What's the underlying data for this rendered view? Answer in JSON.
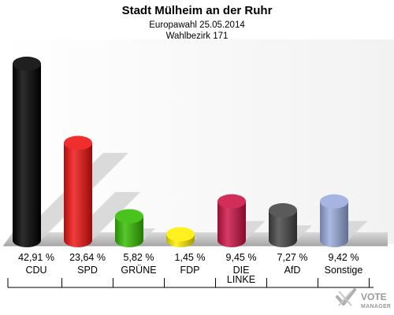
{
  "header": {
    "title": "Stadt Mülheim an der Ruhr",
    "subtitle1": "Europawahl 25.05.2014",
    "subtitle2": "Wahlbezirk 171"
  },
  "chart_data": {
    "type": "bar",
    "categories": [
      "CDU",
      "SPD",
      "GRÜNE",
      "FDP",
      "DIE LINKE",
      "AfD",
      "Sonstige"
    ],
    "values": [
      42.91,
      23.64,
      5.82,
      1.45,
      9.45,
      7.27,
      9.42
    ],
    "value_labels": [
      "42,91 %",
      "23,64 %",
      "5,82 %",
      "1,45 %",
      "9,45 %",
      "7,27 %",
      "9,42 %"
    ],
    "colors": [
      "#000000",
      "#ee1111",
      "#33bb00",
      "#ffee00",
      "#cc1144",
      "#444444",
      "#99aadd"
    ],
    "title": "Stadt Mülheim an der Ruhr",
    "ylim": [
      0,
      45
    ],
    "grid": false,
    "legend": "none"
  },
  "watermark": {
    "line1": "VOTE",
    "line2": "MANAGER",
    "icon": "vote-manager-logo-icon"
  }
}
